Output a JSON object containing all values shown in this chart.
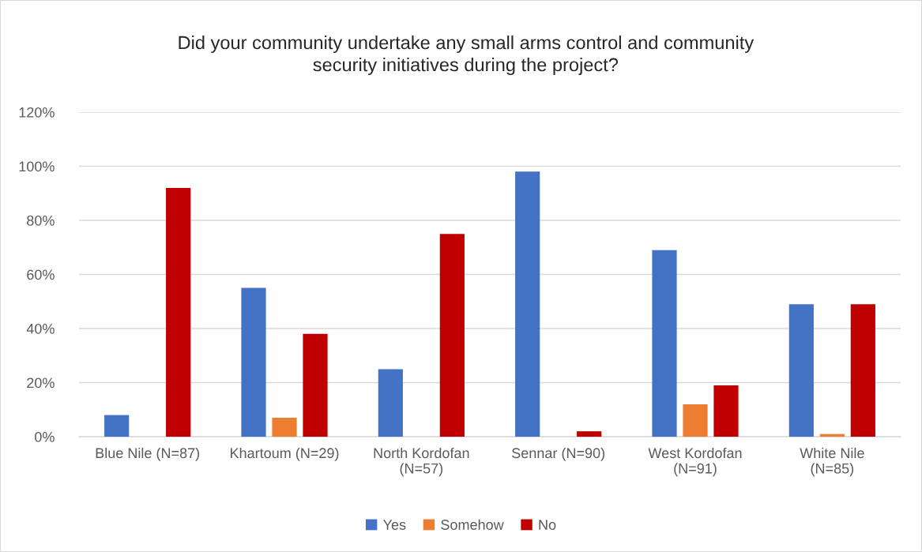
{
  "chart_data": {
    "type": "bar",
    "title": "Did your community undertake any small arms control and community\nsecurity initiatives during the project?",
    "categories": [
      "Blue Nile (N=87)",
      "Khartoum (N=29)",
      "North Kordofan\n(N=57)",
      "Sennar (N=90)",
      "West Kordofan\n(N=91)",
      "White Nile\n(N=85)"
    ],
    "series": [
      {
        "name": "Yes",
        "color": "#4472c4",
        "values": [
          8,
          55,
          25,
          98,
          69,
          49
        ]
      },
      {
        "name": "Somehow",
        "color": "#ed7d31",
        "values": [
          0,
          7,
          0,
          0,
          12,
          1
        ]
      },
      {
        "name": "No",
        "color": "#c00000",
        "values": [
          92,
          38,
          75,
          2,
          19,
          49
        ]
      }
    ],
    "ylim": [
      0,
      120
    ],
    "yticks": [
      {
        "value": 0,
        "label": "0%"
      },
      {
        "value": 20,
        "label": "20%"
      },
      {
        "value": 40,
        "label": "40%"
      },
      {
        "value": 60,
        "label": "60%"
      },
      {
        "value": 80,
        "label": "80%"
      },
      {
        "value": 100,
        "label": "100%"
      },
      {
        "value": 120,
        "label": "120%"
      }
    ],
    "grid": "y",
    "legend": "bottom"
  }
}
